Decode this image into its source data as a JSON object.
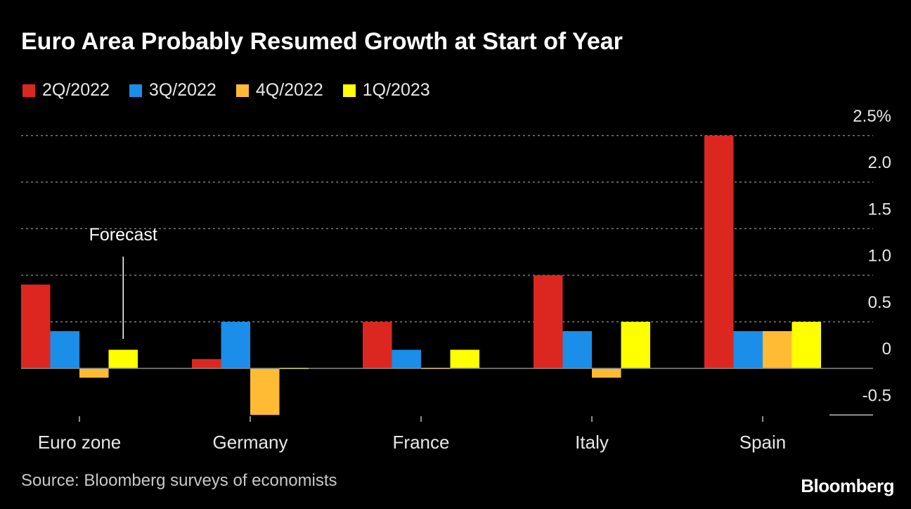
{
  "title": "Euro Area Probably Resumed Growth at Start of Year",
  "source": "Source: Bloomberg surveys of economists",
  "brand": "Bloomberg",
  "annotation": "Forecast",
  "colors": {
    "background": "#000000",
    "grid": "#7a7a7a",
    "text": "#e8e8e8"
  },
  "chart_data": {
    "type": "bar",
    "title": "Euro Area Probably Resumed Growth at Start of Year",
    "categories": [
      "Euro zone",
      "Germany",
      "France",
      "Italy",
      "Spain"
    ],
    "series": [
      {
        "name": "2Q/2022",
        "color": "#dc2720",
        "values": [
          0.9,
          0.1,
          0.5,
          1.0,
          2.5
        ]
      },
      {
        "name": "3Q/2022",
        "color": "#1a8ee8",
        "values": [
          0.4,
          0.5,
          0.2,
          0.4,
          0.4
        ]
      },
      {
        "name": "4Q/2022",
        "color": "#ffbb33",
        "values": [
          -0.1,
          -0.5,
          0.0,
          -0.1,
          0.4
        ]
      },
      {
        "name": "1Q/2023",
        "color": "#ffff00",
        "values": [
          0.2,
          0.0,
          0.2,
          0.5,
          0.5
        ]
      }
    ],
    "y_ticks": [
      {
        "value": 2.5,
        "label": "2.5%"
      },
      {
        "value": 2.0,
        "label": "2.0"
      },
      {
        "value": 1.5,
        "label": "1.5"
      },
      {
        "value": 1.0,
        "label": "1.0"
      },
      {
        "value": 0.5,
        "label": "0.5"
      },
      {
        "value": 0,
        "label": "0"
      },
      {
        "value": -0.5,
        "label": "-0.5"
      }
    ],
    "ylim": [
      -0.5,
      2.5
    ],
    "grid": true,
    "legend_position": "top-left",
    "y_axis_side": "right"
  }
}
